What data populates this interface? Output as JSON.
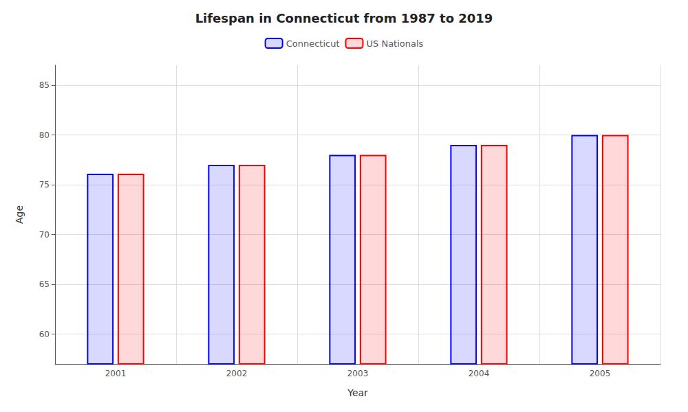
{
  "chart_data": {
    "type": "bar",
    "title": "Lifespan in Connecticut from 1987 to 2019",
    "xlabel": "Year",
    "ylabel": "Age",
    "categories": [
      "2001",
      "2002",
      "2003",
      "2004",
      "2005"
    ],
    "series": [
      {
        "name": "Connecticut",
        "color": "#0000ff",
        "values": [
          76.1,
          77.0,
          78.0,
          79.0,
          80.0
        ]
      },
      {
        "name": "US Nationals",
        "color": "#ff0000",
        "values": [
          76.1,
          77.0,
          78.0,
          79.0,
          80.0
        ]
      }
    ],
    "ylim": [
      57,
      87
    ],
    "yticks": [
      60,
      65,
      70,
      75,
      80,
      85
    ],
    "grid": true,
    "legend": "top"
  }
}
